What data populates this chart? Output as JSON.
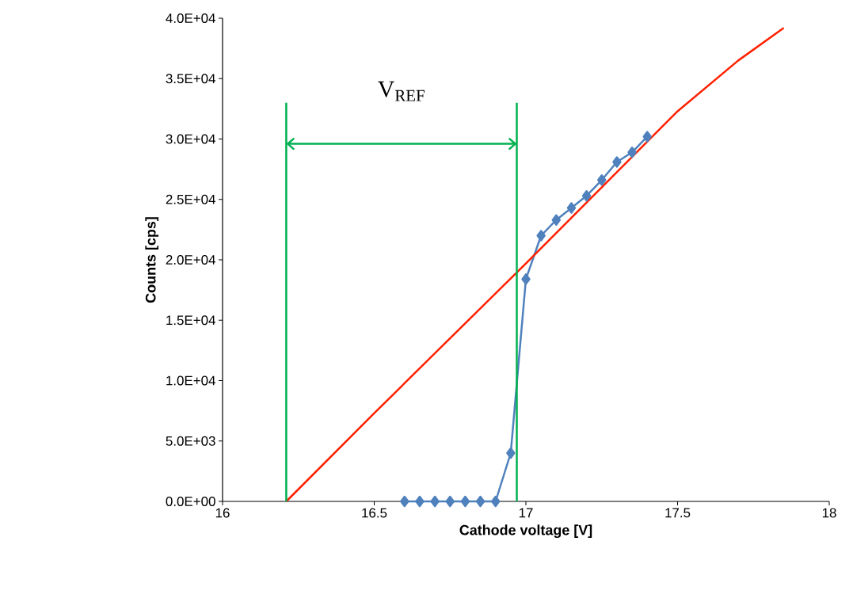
{
  "chart_data": {
    "type": "line",
    "xlabel": "Cathode voltage [V]",
    "ylabel": "Counts [cps]",
    "xlim": [
      16,
      18
    ],
    "xticks": [
      16,
      16.5,
      17,
      17.5,
      18
    ],
    "ylim": [
      0,
      40000
    ],
    "yticks": [
      {
        "value": 0,
        "label": "0.0E+00"
      },
      {
        "value": 5000,
        "label": "5.0E+03"
      },
      {
        "value": 10000,
        "label": "1.0E+04"
      },
      {
        "value": 15000,
        "label": "1.5E+04"
      },
      {
        "value": 20000,
        "label": "2.0E+04"
      },
      {
        "value": 25000,
        "label": "2.5E+04"
      },
      {
        "value": 30000,
        "label": "3.0E+04"
      },
      {
        "value": 35000,
        "label": "3.5E+04"
      },
      {
        "value": 40000,
        "label": "4.0E+04"
      }
    ],
    "series": [
      {
        "color": "#4f81bd",
        "marker": "diamond",
        "x": [
          16.6,
          16.65,
          16.7,
          16.75,
          16.8,
          16.85,
          16.9,
          16.95,
          17.0,
          17.05,
          17.1,
          17.15,
          17.2,
          17.25,
          17.3,
          17.35,
          17.4
        ],
        "values": [
          0,
          0,
          0,
          0,
          0,
          0,
          0,
          4000,
          18400,
          22000,
          23300,
          24300,
          25300,
          26600,
          28100,
          28900,
          30200
        ]
      },
      {
        "color": "#ff2000",
        "marker": "none",
        "x": [
          16.21,
          16.5,
          17.0,
          17.5,
          17.7,
          17.85
        ],
        "values": [
          0,
          7300,
          19700,
          32300,
          36500,
          39200
        ]
      }
    ],
    "ref_lines": [
      {
        "axis": "x",
        "value": 16.21,
        "color": "#00b050"
      },
      {
        "axis": "x",
        "value": 16.97,
        "color": "#00b050"
      }
    ],
    "annotations": [
      "V$_{REF}$"
    ]
  }
}
